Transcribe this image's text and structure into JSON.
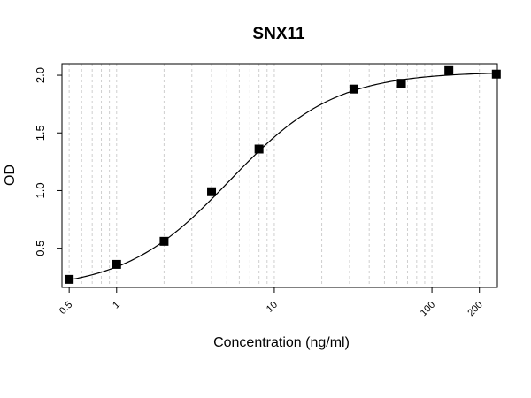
{
  "chart_data": {
    "type": "scatter",
    "title": "SNX11",
    "xlabel": "Concentration (ng/ml)",
    "ylabel": "OD",
    "x_scale": "log",
    "xlim": [
      0.45,
      260
    ],
    "ylim": [
      0.16,
      2.1
    ],
    "grid": true,
    "x_ticks": [
      {
        "value": 0.5,
        "label": "0.5"
      },
      {
        "value": 1,
        "label": "1"
      },
      {
        "value": 10,
        "label": "10"
      },
      {
        "value": 100,
        "label": "100"
      },
      {
        "value": 200,
        "label": "200"
      }
    ],
    "y_ticks": [
      {
        "value": 0.5,
        "label": "0.5"
      },
      {
        "value": 1.0,
        "label": "1.0"
      },
      {
        "value": 1.5,
        "label": "1.5"
      },
      {
        "value": 2.0,
        "label": "2.0"
      }
    ],
    "series": [
      {
        "x": [
          0.5,
          1,
          2,
          4,
          8,
          32,
          64,
          128,
          256
        ],
        "y": [
          0.23,
          0.36,
          0.56,
          0.99,
          1.36,
          1.88,
          1.93,
          2.04,
          2.01
        ]
      }
    ],
    "fit": {
      "model": "4PL",
      "bottom": 0.14,
      "top": 2.03,
      "ec50": 5.2,
      "hill": 1.3
    }
  }
}
